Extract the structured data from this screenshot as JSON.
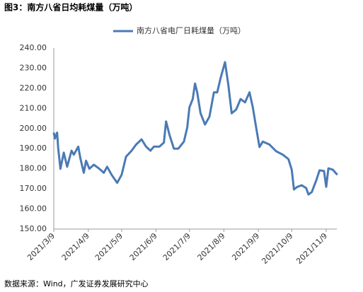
{
  "chart_data": {
    "type": "line",
    "title": "图3：南方八省日均耗煤量（万吨）",
    "source": "数据来源：Wind，广发证券发展研究中心",
    "x": [
      "2021/3/9",
      "2021/3/10",
      "2021/3/12",
      "2021/3/13",
      "2021/3/15",
      "2021/3/18",
      "2021/3/21",
      "2021/3/25",
      "2021/3/27",
      "2021/3/31",
      "2021/4/2",
      "2021/4/5",
      "2021/4/7",
      "2021/4/10",
      "2021/4/14",
      "2021/4/19",
      "2021/4/23",
      "2021/4/26",
      "2021/4/30",
      "2021/5/5",
      "2021/5/9",
      "2021/5/13",
      "2021/5/18",
      "2021/5/22",
      "2021/5/27",
      "2021/5/31",
      "2021/6/4",
      "2021/6/7",
      "2021/6/12",
      "2021/6/16",
      "2021/6/18",
      "2021/6/21",
      "2021/6/25",
      "2021/6/29",
      "2021/7/4",
      "2021/7/7",
      "2021/7/9",
      "2021/7/12",
      "2021/7/14",
      "2021/7/16",
      "2021/7/19",
      "2021/7/23",
      "2021/7/27",
      "2021/7/31",
      "2021/8/3",
      "2021/8/6",
      "2021/8/10",
      "2021/8/13",
      "2021/8/16",
      "2021/8/20",
      "2021/8/24",
      "2021/8/28",
      "2021/9/1",
      "2021/9/4",
      "2021/9/7",
      "2021/9/10",
      "2021/9/13",
      "2021/9/19",
      "2021/9/25",
      "2021/10/1",
      "2021/10/6",
      "2021/10/9",
      "2021/10/11",
      "2021/10/14",
      "2021/10/18",
      "2021/10/22",
      "2021/10/24",
      "2021/10/27",
      "2021/10/31",
      "2021/11/3",
      "2021/11/7",
      "2021/11/9",
      "2021/11/11",
      "2021/11/15",
      "2021/11/19"
    ],
    "series": [
      {
        "name": "南方八省电厂日耗煤量（万吨）",
        "color": "#4a7ab5",
        "values": [
          198,
          195,
          198,
          190,
          180,
          188,
          181,
          189,
          187,
          191,
          185,
          178,
          184,
          180,
          182,
          180,
          178,
          181,
          177,
          173,
          177,
          186,
          189,
          192,
          194.6,
          191,
          189,
          191,
          191,
          193,
          203.5,
          197,
          190,
          190,
          193.5,
          200.5,
          210.5,
          214.7,
          222.4,
          218,
          207.6,
          202,
          205.9,
          218,
          218,
          225,
          233,
          221.7,
          207.6,
          209.4,
          214.7,
          213,
          218,
          210.5,
          200.5,
          190.8,
          193.5,
          192,
          188.7,
          187,
          184.8,
          179.5,
          169.7,
          171,
          171.8,
          170.4,
          167.2,
          168.4,
          174.2,
          179.2,
          178.9,
          171,
          180.2,
          179.5,
          177
        ]
      }
    ],
    "xticks": [
      "2021/3/9",
      "2021/4/9",
      "2021/5/9",
      "2021/6/9",
      "2021/7/9",
      "2021/8/9",
      "2021/9/9",
      "2021/10/9",
      "2021/11/9"
    ],
    "ylim": [
      150,
      240
    ],
    "yticks": [
      {
        "value": 150,
        "label": "150.00"
      },
      {
        "value": 160,
        "label": "160.00"
      },
      {
        "value": 170,
        "label": "170.00"
      },
      {
        "value": 180,
        "label": "180.00"
      },
      {
        "value": 190,
        "label": "190.00"
      },
      {
        "value": 200,
        "label": "200.00"
      },
      {
        "value": 210,
        "label": "210.00"
      },
      {
        "value": 220,
        "label": "220.00"
      },
      {
        "value": 230,
        "label": "230.00"
      },
      {
        "value": 240,
        "label": "240.00"
      }
    ],
    "legend": "top"
  }
}
